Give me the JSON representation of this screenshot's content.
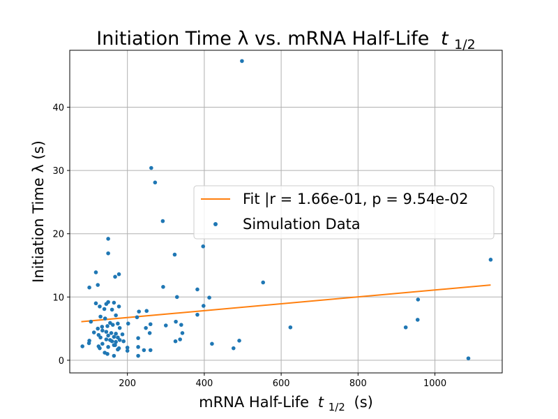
{
  "chart_data": {
    "type": "scatter",
    "title": "Initiation Time λ vs. mRNA Half-Life",
    "title_math": "t",
    "title_sub": "1/2",
    "xlabel": "mRNA Half-Life",
    "xlabel_math": "t",
    "xlabel_sub": "1/2",
    "xlabel_suffix": "(s)",
    "ylabel": "Initiation Time λ (s)",
    "xlim": [
      50,
      1175
    ],
    "ylim": [
      -2,
      49
    ],
    "xticks": [
      200,
      400,
      600,
      800,
      1000
    ],
    "yticks": [
      0,
      10,
      20,
      30,
      40
    ],
    "grid": true,
    "legend_position": "center-right",
    "series": [
      {
        "name": "Fit |r = 1.66e-01, p = 9.54e-02",
        "kind": "line",
        "color": "#ff7f0e",
        "x": [
          80,
          1145
        ],
        "y": [
          6.1,
          11.9
        ]
      },
      {
        "name": "Simulation Data",
        "kind": "scatter",
        "color": "#1f77b4",
        "points": [
          [
            498,
            47.3
          ],
          [
            262,
            30.4
          ],
          [
            272,
            28.1
          ],
          [
            292,
            22.0
          ],
          [
            150,
            19.2
          ],
          [
            397,
            18.0
          ],
          [
            150,
            16.9
          ],
          [
            1145,
            15.9
          ],
          [
            323,
            16.7
          ],
          [
            178,
            13.6
          ],
          [
            168,
            13.2
          ],
          [
            118,
            13.9
          ],
          [
            553,
            12.3
          ],
          [
            101,
            11.5
          ],
          [
            123,
            11.9
          ],
          [
            293,
            11.6
          ],
          [
            382,
            11.2
          ],
          [
            329,
            10.0
          ],
          [
            413,
            9.9
          ],
          [
            956,
            9.6
          ],
          [
            118,
            9.0
          ],
          [
            150,
            9.2
          ],
          [
            165,
            9.1
          ],
          [
            145,
            8.9
          ],
          [
            128,
            8.5
          ],
          [
            398,
            8.6
          ],
          [
            178,
            8.5
          ],
          [
            140,
            8.1
          ],
          [
            160,
            8.0
          ],
          [
            230,
            7.7
          ],
          [
            250,
            7.8
          ],
          [
            382,
            7.2
          ],
          [
            170,
            7.1
          ],
          [
            130,
            6.9
          ],
          [
            142,
            6.6
          ],
          [
            225,
            6.8
          ],
          [
            105,
            6.1
          ],
          [
            202,
            5.8
          ],
          [
            300,
            5.5
          ],
          [
            175,
            5.8
          ],
          [
            260,
            5.7
          ],
          [
            326,
            6.1
          ],
          [
            340,
            5.6
          ],
          [
            955,
            6.4
          ],
          [
            155,
            5.9
          ],
          [
            162,
            5.6
          ],
          [
            134,
            5.3
          ],
          [
            148,
            5.4
          ],
          [
            123,
            5.0
          ],
          [
            180,
            5.1
          ],
          [
            248,
            5.1
          ],
          [
            624,
            5.2
          ],
          [
            924,
            5.2
          ],
          [
            113,
            4.4
          ],
          [
            135,
            4.7
          ],
          [
            145,
            4.5
          ],
          [
            158,
            4.3
          ],
          [
            170,
            4.2
          ],
          [
            187,
            4.1
          ],
          [
            125,
            4.0
          ],
          [
            150,
            3.9
          ],
          [
            165,
            3.7
          ],
          [
            175,
            3.6
          ],
          [
            258,
            4.3
          ],
          [
            343,
            4.3
          ],
          [
            130,
            3.6
          ],
          [
            145,
            3.3
          ],
          [
            155,
            3.2
          ],
          [
            160,
            3.0
          ],
          [
            170,
            2.9
          ],
          [
            180,
            3.2
          ],
          [
            190,
            3.0
          ],
          [
            228,
            3.5
          ],
          [
            101,
            3.1
          ],
          [
            337,
            3.3
          ],
          [
            491,
            3.1
          ],
          [
            325,
            3.0
          ],
          [
            100,
            2.7
          ],
          [
            135,
            2.6
          ],
          [
            168,
            2.4
          ],
          [
            420,
            2.6
          ],
          [
            83,
            2.2
          ],
          [
            125,
            2.2
          ],
          [
            150,
            2.1
          ],
          [
            165,
            2.4
          ],
          [
            178,
            1.9
          ],
          [
            200,
            2.0
          ],
          [
            228,
            2.1
          ],
          [
            128,
            1.9
          ],
          [
            175,
            1.7
          ],
          [
            200,
            1.5
          ],
          [
            243,
            1.6
          ],
          [
            260,
            1.6
          ],
          [
            141,
            1.2
          ],
          [
            148,
            1.0
          ],
          [
            165,
            0.7
          ],
          [
            228,
            0.7
          ],
          [
            476,
            1.9
          ],
          [
            1087,
            0.3
          ]
        ]
      }
    ]
  }
}
